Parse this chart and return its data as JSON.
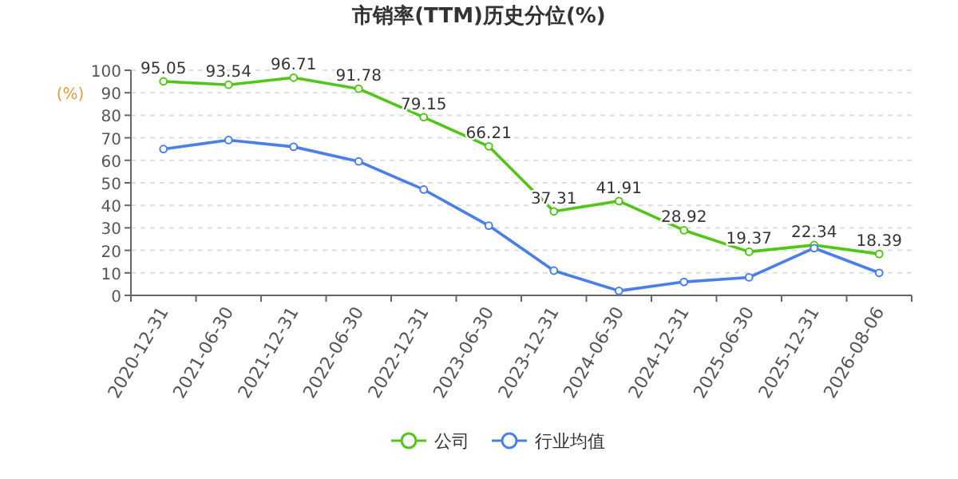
{
  "chart_data": {
    "type": "line",
    "title": "市销率(TTM)历史分位(%)",
    "ylabel": "(%)",
    "categories": [
      "2020-12-31",
      "2021-06-30",
      "2021-12-31",
      "2022-06-30",
      "2022-12-31",
      "2023-06-30",
      "2023-12-31",
      "2024-06-30",
      "2024-12-31",
      "2025-06-30",
      "2025-12-31",
      "2026-08-06"
    ],
    "series": [
      {
        "name": "公司",
        "color": "#52c41a",
        "values": [
          95.05,
          93.54,
          96.71,
          91.78,
          79.15,
          66.21,
          37.31,
          41.91,
          28.92,
          19.37,
          22.34,
          18.39
        ],
        "data_labels": true
      },
      {
        "name": "行业均值",
        "color": "#4a7ee8",
        "values": [
          65,
          69,
          66,
          59.5,
          47,
          31,
          11,
          2,
          6,
          8,
          21,
          10
        ]
      }
    ],
    "ylim": [
      0,
      100
    ],
    "yticks": [
      0,
      10,
      20,
      30,
      40,
      50,
      60,
      70,
      80,
      90,
      100
    ],
    "grid": "y",
    "legend": "bottom",
    "marker": "circle"
  }
}
